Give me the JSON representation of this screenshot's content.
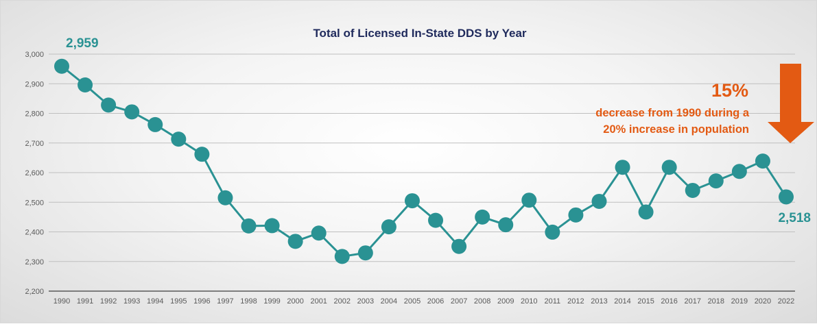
{
  "chart_data": {
    "type": "line",
    "title": "Total of Licensed In-State DDS by Year",
    "xlabel": "",
    "ylabel": "",
    "ylim": [
      2200,
      3000
    ],
    "yticks": [
      "2,200",
      "2,300",
      "2,400",
      "2,500",
      "2,600",
      "2,700",
      "2,800",
      "2,900",
      "3,000"
    ],
    "grid": true,
    "categories": [
      "1990",
      "1991",
      "1992",
      "1993",
      "1994",
      "1995",
      "1996",
      "1997",
      "1998",
      "1999",
      "2000",
      "2001",
      "2002",
      "2003",
      "2004",
      "2005",
      "2006",
      "2007",
      "2008",
      "2009",
      "2010",
      "2011",
      "2012",
      "2013",
      "2014",
      "2015",
      "2016",
      "2017",
      "2018",
      "2019",
      "2020",
      "2022"
    ],
    "values": [
      2959,
      2896,
      2828,
      2805,
      2762,
      2713,
      2662,
      2515,
      2420,
      2421,
      2368,
      2396,
      2317,
      2329,
      2417,
      2505,
      2439,
      2351,
      2450,
      2424,
      2507,
      2399,
      2457,
      2503,
      2618,
      2467,
      2618,
      2540,
      2572,
      2604,
      2639,
      2518
    ],
    "series_color": "#2a9293",
    "data_labels": {
      "first": "2,959",
      "last": "2,518"
    }
  },
  "callout": {
    "big": "15%",
    "line1": "decrease from 1990 during a",
    "line2": "20% increase in population",
    "color": "#e35a13",
    "icon": "down-arrow-icon"
  }
}
